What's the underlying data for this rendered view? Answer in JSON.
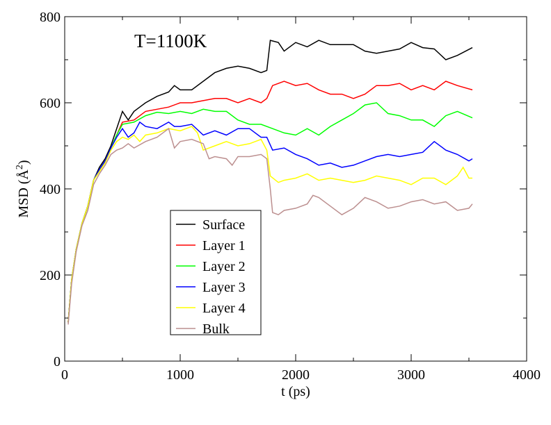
{
  "chart_data": {
    "type": "line",
    "annotation": "T=1100K",
    "xlabel": "t (ps)",
    "ylabel_main": "MSD (",
    "ylabel_unit": "Å",
    "ylabel_sup": "2",
    "ylabel_close": ")",
    "xlim": [
      0,
      4000
    ],
    "ylim": [
      0,
      800
    ],
    "xticks": [
      0,
      1000,
      2000,
      3000,
      4000
    ],
    "yticks": [
      0,
      200,
      400,
      600,
      800
    ],
    "xtick_labels": [
      "0",
      "1000",
      "2000",
      "3000",
      "4000"
    ],
    "ytick_labels": [
      "0",
      "200",
      "400",
      "600",
      "800"
    ],
    "grid": false,
    "legend_position": "lower-center",
    "series": [
      {
        "name": "Surface",
        "color": "#000000",
        "points": [
          [
            30,
            90
          ],
          [
            60,
            190
          ],
          [
            100,
            260
          ],
          [
            150,
            320
          ],
          [
            200,
            360
          ],
          [
            250,
            420
          ],
          [
            300,
            450
          ],
          [
            350,
            470
          ],
          [
            400,
            500
          ],
          [
            450,
            540
          ],
          [
            500,
            580
          ],
          [
            550,
            560
          ],
          [
            600,
            580
          ],
          [
            650,
            590
          ],
          [
            700,
            600
          ],
          [
            800,
            615
          ],
          [
            900,
            625
          ],
          [
            950,
            640
          ],
          [
            1000,
            630
          ],
          [
            1100,
            630
          ],
          [
            1200,
            650
          ],
          [
            1300,
            670
          ],
          [
            1400,
            680
          ],
          [
            1500,
            685
          ],
          [
            1600,
            680
          ],
          [
            1700,
            670
          ],
          [
            1750,
            675
          ],
          [
            1780,
            745
          ],
          [
            1850,
            740
          ],
          [
            1900,
            720
          ],
          [
            2000,
            740
          ],
          [
            2100,
            730
          ],
          [
            2200,
            745
          ],
          [
            2300,
            735
          ],
          [
            2400,
            735
          ],
          [
            2500,
            735
          ],
          [
            2600,
            720
          ],
          [
            2700,
            715
          ],
          [
            2800,
            720
          ],
          [
            2900,
            725
          ],
          [
            3000,
            740
          ],
          [
            3100,
            728
          ],
          [
            3200,
            725
          ],
          [
            3300,
            700
          ],
          [
            3400,
            710
          ],
          [
            3530,
            728
          ]
        ]
      },
      {
        "name": "Layer 1",
        "color": "#ff0000",
        "points": [
          [
            30,
            90
          ],
          [
            60,
            190
          ],
          [
            100,
            260
          ],
          [
            150,
            320
          ],
          [
            200,
            360
          ],
          [
            250,
            420
          ],
          [
            300,
            445
          ],
          [
            350,
            465
          ],
          [
            400,
            495
          ],
          [
            450,
            525
          ],
          [
            500,
            555
          ],
          [
            600,
            560
          ],
          [
            700,
            580
          ],
          [
            800,
            585
          ],
          [
            900,
            590
          ],
          [
            1000,
            600
          ],
          [
            1100,
            600
          ],
          [
            1200,
            605
          ],
          [
            1300,
            610
          ],
          [
            1400,
            610
          ],
          [
            1500,
            600
          ],
          [
            1600,
            610
          ],
          [
            1700,
            600
          ],
          [
            1750,
            610
          ],
          [
            1800,
            640
          ],
          [
            1900,
            650
          ],
          [
            2000,
            640
          ],
          [
            2100,
            645
          ],
          [
            2200,
            630
          ],
          [
            2300,
            620
          ],
          [
            2400,
            620
          ],
          [
            2500,
            610
          ],
          [
            2600,
            620
          ],
          [
            2700,
            640
          ],
          [
            2800,
            640
          ],
          [
            2900,
            645
          ],
          [
            3000,
            630
          ],
          [
            3100,
            640
          ],
          [
            3200,
            630
          ],
          [
            3300,
            650
          ],
          [
            3400,
            640
          ],
          [
            3530,
            630
          ]
        ]
      },
      {
        "name": "Layer 2",
        "color": "#00ff00",
        "points": [
          [
            30,
            90
          ],
          [
            60,
            190
          ],
          [
            100,
            260
          ],
          [
            150,
            320
          ],
          [
            200,
            360
          ],
          [
            250,
            420
          ],
          [
            300,
            445
          ],
          [
            350,
            465
          ],
          [
            400,
            495
          ],
          [
            450,
            525
          ],
          [
            500,
            550
          ],
          [
            600,
            555
          ],
          [
            700,
            570
          ],
          [
            800,
            578
          ],
          [
            900,
            575
          ],
          [
            1000,
            580
          ],
          [
            1100,
            575
          ],
          [
            1200,
            585
          ],
          [
            1300,
            580
          ],
          [
            1400,
            580
          ],
          [
            1500,
            560
          ],
          [
            1600,
            550
          ],
          [
            1700,
            550
          ],
          [
            1800,
            540
          ],
          [
            1900,
            530
          ],
          [
            2000,
            525
          ],
          [
            2100,
            540
          ],
          [
            2200,
            525
          ],
          [
            2300,
            545
          ],
          [
            2400,
            560
          ],
          [
            2500,
            575
          ],
          [
            2600,
            595
          ],
          [
            2700,
            600
          ],
          [
            2800,
            575
          ],
          [
            2900,
            570
          ],
          [
            3000,
            560
          ],
          [
            3100,
            560
          ],
          [
            3200,
            545
          ],
          [
            3300,
            570
          ],
          [
            3400,
            580
          ],
          [
            3530,
            565
          ]
        ]
      },
      {
        "name": "Layer 3",
        "color": "#0000ff",
        "points": [
          [
            30,
            90
          ],
          [
            60,
            190
          ],
          [
            100,
            260
          ],
          [
            150,
            320
          ],
          [
            200,
            360
          ],
          [
            250,
            420
          ],
          [
            300,
            445
          ],
          [
            350,
            465
          ],
          [
            400,
            495
          ],
          [
            450,
            520
          ],
          [
            500,
            540
          ],
          [
            550,
            520
          ],
          [
            600,
            530
          ],
          [
            650,
            555
          ],
          [
            700,
            545
          ],
          [
            800,
            540
          ],
          [
            900,
            555
          ],
          [
            950,
            545
          ],
          [
            1000,
            545
          ],
          [
            1100,
            550
          ],
          [
            1200,
            525
          ],
          [
            1300,
            535
          ],
          [
            1400,
            525
          ],
          [
            1500,
            540
          ],
          [
            1600,
            540
          ],
          [
            1700,
            520
          ],
          [
            1750,
            520
          ],
          [
            1800,
            490
          ],
          [
            1900,
            495
          ],
          [
            2000,
            480
          ],
          [
            2100,
            470
          ],
          [
            2200,
            455
          ],
          [
            2300,
            460
          ],
          [
            2400,
            450
          ],
          [
            2500,
            455
          ],
          [
            2600,
            465
          ],
          [
            2700,
            475
          ],
          [
            2800,
            480
          ],
          [
            2900,
            475
          ],
          [
            3000,
            480
          ],
          [
            3100,
            485
          ],
          [
            3200,
            510
          ],
          [
            3300,
            490
          ],
          [
            3400,
            480
          ],
          [
            3500,
            465
          ],
          [
            3530,
            470
          ]
        ]
      },
      {
        "name": "Layer 4",
        "color": "#ffff00",
        "points": [
          [
            30,
            90
          ],
          [
            60,
            190
          ],
          [
            100,
            260
          ],
          [
            150,
            320
          ],
          [
            200,
            360
          ],
          [
            250,
            420
          ],
          [
            300,
            440
          ],
          [
            350,
            460
          ],
          [
            400,
            490
          ],
          [
            450,
            510
          ],
          [
            500,
            520
          ],
          [
            550,
            515
          ],
          [
            600,
            525
          ],
          [
            650,
            510
          ],
          [
            700,
            525
          ],
          [
            800,
            530
          ],
          [
            900,
            540
          ],
          [
            1000,
            535
          ],
          [
            1100,
            545
          ],
          [
            1150,
            530
          ],
          [
            1200,
            490
          ],
          [
            1300,
            500
          ],
          [
            1400,
            510
          ],
          [
            1500,
            500
          ],
          [
            1600,
            505
          ],
          [
            1700,
            515
          ],
          [
            1750,
            490
          ],
          [
            1780,
            430
          ],
          [
            1850,
            415
          ],
          [
            1900,
            420
          ],
          [
            2000,
            425
          ],
          [
            2100,
            435
          ],
          [
            2200,
            420
          ],
          [
            2300,
            425
          ],
          [
            2400,
            420
          ],
          [
            2500,
            415
          ],
          [
            2600,
            420
          ],
          [
            2700,
            430
          ],
          [
            2800,
            425
          ],
          [
            2900,
            420
          ],
          [
            3000,
            410
          ],
          [
            3100,
            425
          ],
          [
            3200,
            425
          ],
          [
            3300,
            410
          ],
          [
            3400,
            430
          ],
          [
            3450,
            450
          ],
          [
            3500,
            425
          ],
          [
            3530,
            425
          ]
        ]
      },
      {
        "name": "Bulk",
        "color": "#bc8f8f",
        "points": [
          [
            30,
            85
          ],
          [
            60,
            180
          ],
          [
            100,
            255
          ],
          [
            150,
            315
          ],
          [
            200,
            350
          ],
          [
            250,
            410
          ],
          [
            300,
            435
          ],
          [
            350,
            455
          ],
          [
            400,
            480
          ],
          [
            450,
            490
          ],
          [
            500,
            495
          ],
          [
            550,
            505
          ],
          [
            600,
            495
          ],
          [
            700,
            510
          ],
          [
            800,
            520
          ],
          [
            900,
            540
          ],
          [
            950,
            495
          ],
          [
            1000,
            510
          ],
          [
            1100,
            515
          ],
          [
            1200,
            505
          ],
          [
            1250,
            470
          ],
          [
            1300,
            475
          ],
          [
            1400,
            470
          ],
          [
            1450,
            455
          ],
          [
            1500,
            475
          ],
          [
            1600,
            475
          ],
          [
            1700,
            480
          ],
          [
            1750,
            470
          ],
          [
            1780,
            400
          ],
          [
            1800,
            345
          ],
          [
            1850,
            340
          ],
          [
            1900,
            350
          ],
          [
            2000,
            355
          ],
          [
            2100,
            365
          ],
          [
            2150,
            385
          ],
          [
            2200,
            380
          ],
          [
            2300,
            360
          ],
          [
            2400,
            340
          ],
          [
            2500,
            355
          ],
          [
            2600,
            380
          ],
          [
            2700,
            370
          ],
          [
            2800,
            355
          ],
          [
            2900,
            360
          ],
          [
            3000,
            370
          ],
          [
            3100,
            375
          ],
          [
            3200,
            365
          ],
          [
            3300,
            370
          ],
          [
            3400,
            350
          ],
          [
            3500,
            355
          ],
          [
            3530,
            365
          ]
        ]
      }
    ]
  }
}
